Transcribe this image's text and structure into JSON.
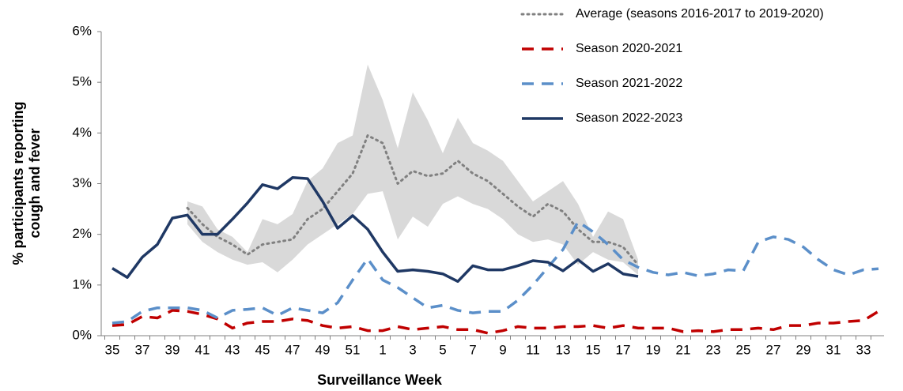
{
  "chart_data": {
    "type": "line",
    "y_label": [
      "% participants reporting",
      "cough and fever"
    ],
    "x_label": "Surveillance Week",
    "categories": [
      "35",
      null,
      "37",
      null,
      "39",
      null,
      "41",
      null,
      "43",
      null,
      "45",
      null,
      "47",
      null,
      "49",
      null,
      "51",
      null,
      "1",
      null,
      "3",
      null,
      "5",
      null,
      "7",
      null,
      "9",
      null,
      "11",
      null,
      "13",
      null,
      "15",
      null,
      "17",
      null,
      "19",
      null,
      "21",
      null,
      "23",
      null,
      "25",
      null,
      "27",
      null,
      "29",
      null,
      "31",
      null,
      "33",
      null
    ],
    "ylim": [
      0,
      6
    ],
    "yticks": [
      {
        "value": 0,
        "label": "0%"
      },
      {
        "value": 1,
        "label": "1%"
      },
      {
        "value": 2,
        "label": "2%"
      },
      {
        "value": 3,
        "label": "3%"
      },
      {
        "value": 4,
        "label": "4%"
      },
      {
        "value": 5,
        "label": "5%"
      },
      {
        "value": 6,
        "label": "6%"
      }
    ],
    "grid": false,
    "legend": "top-right",
    "band": {
      "color": "#d9d9d9",
      "upper": [
        null,
        null,
        null,
        null,
        null,
        2.65,
        2.55,
        2.1,
        1.95,
        1.65,
        2.3,
        2.2,
        2.4,
        3.05,
        3.3,
        3.8,
        3.95,
        5.35,
        4.65,
        3.7,
        4.8,
        4.25,
        3.6,
        4.3,
        3.8,
        3.65,
        3.45,
        3.05,
        2.65,
        2.85,
        3.05,
        2.6,
        1.95,
        2.45,
        2.3,
        1.5,
        null,
        null,
        null,
        null,
        null,
        null,
        null,
        null,
        null,
        null,
        null,
        null,
        null,
        null,
        null,
        null
      ],
      "lower": [
        null,
        null,
        null,
        null,
        null,
        2.2,
        1.85,
        1.65,
        1.5,
        1.4,
        1.45,
        1.25,
        1.5,
        1.8,
        2.0,
        2.2,
        2.4,
        2.8,
        2.85,
        1.9,
        2.35,
        2.15,
        2.6,
        2.75,
        2.6,
        2.5,
        2.3,
        2.0,
        1.85,
        1.9,
        1.8,
        1.4,
        1.65,
        1.5,
        1.45,
        1.2,
        null,
        null,
        null,
        null,
        null,
        null,
        null,
        null,
        null,
        null,
        null,
        null,
        null,
        null,
        null,
        null
      ]
    },
    "series": [
      {
        "name": "Average (seasons 2016-2017 to 2019-2020)",
        "color": "#808080",
        "dash": "dotted",
        "values": [
          null,
          null,
          null,
          null,
          null,
          2.52,
          2.2,
          1.95,
          1.8,
          1.6,
          1.8,
          1.85,
          1.9,
          2.3,
          2.5,
          2.85,
          3.2,
          3.95,
          3.8,
          3.0,
          3.25,
          3.15,
          3.2,
          3.45,
          3.2,
          3.05,
          2.8,
          2.55,
          2.35,
          2.6,
          2.45,
          2.1,
          1.85,
          1.85,
          1.75,
          1.4,
          null,
          null,
          null,
          null,
          null,
          null,
          null,
          null,
          null,
          null,
          null,
          null,
          null,
          null,
          null,
          null
        ]
      },
      {
        "name": "Season 2020-2021",
        "color": "#c00000",
        "dash": "dashed",
        "values": [
          0.2,
          0.22,
          0.38,
          0.35,
          0.5,
          0.48,
          0.42,
          0.33,
          0.15,
          0.25,
          0.28,
          0.28,
          0.33,
          0.3,
          0.2,
          0.15,
          0.18,
          0.1,
          0.1,
          0.18,
          0.12,
          0.15,
          0.18,
          0.12,
          0.12,
          0.05,
          0.1,
          0.18,
          0.15,
          0.15,
          0.18,
          0.18,
          0.2,
          0.15,
          0.2,
          0.15,
          0.15,
          0.15,
          0.08,
          0.1,
          0.08,
          0.12,
          0.12,
          0.15,
          0.12,
          0.2,
          0.2,
          0.25,
          0.25,
          0.28,
          0.3,
          0.48
        ]
      },
      {
        "name": "Season 2021-2022",
        "color": "#5b8fc9",
        "dash": "dashed",
        "values": [
          0.25,
          0.28,
          0.48,
          0.55,
          0.55,
          0.55,
          0.5,
          0.35,
          0.5,
          0.52,
          0.55,
          0.4,
          0.55,
          0.5,
          0.45,
          0.65,
          1.1,
          1.52,
          1.1,
          0.95,
          0.75,
          0.55,
          0.6,
          0.5,
          0.45,
          0.48,
          0.48,
          0.7,
          1.0,
          1.35,
          1.7,
          2.25,
          2.05,
          1.8,
          1.5,
          1.35,
          1.25,
          1.2,
          1.25,
          1.18,
          1.22,
          1.3,
          1.28,
          1.85,
          1.95,
          1.9,
          1.75,
          1.5,
          1.3,
          1.2,
          1.3,
          1.32
        ]
      },
      {
        "name": "Season 2022-2023",
        "color": "#1f3864",
        "dash": "solid",
        "values": [
          1.33,
          1.15,
          1.55,
          1.8,
          2.32,
          2.38,
          2.0,
          2.0,
          2.3,
          2.62,
          2.98,
          2.9,
          3.12,
          3.1,
          2.65,
          2.12,
          2.37,
          2.1,
          1.65,
          1.27,
          1.3,
          1.27,
          1.22,
          1.07,
          1.38,
          1.3,
          1.3,
          1.38,
          1.48,
          1.45,
          1.28,
          1.5,
          1.27,
          1.42,
          1.22,
          1.17,
          null,
          null,
          null,
          null,
          null,
          null,
          null,
          null,
          null,
          null,
          null,
          null,
          null,
          null,
          null,
          null
        ]
      }
    ]
  }
}
